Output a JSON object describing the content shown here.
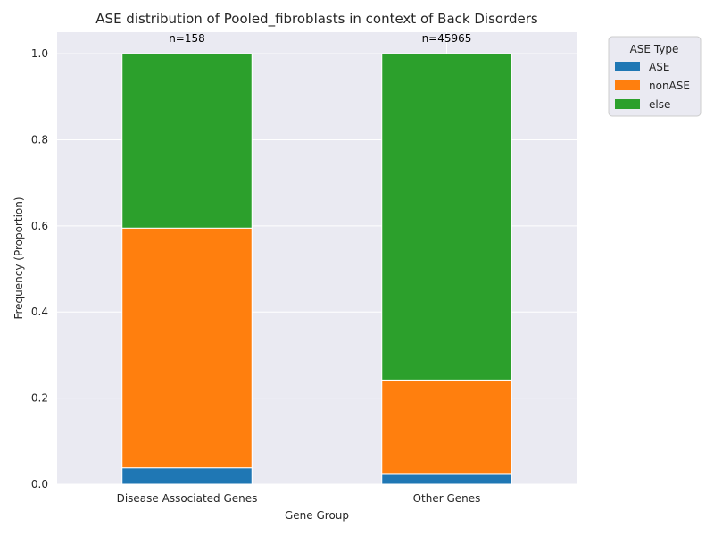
{
  "chart_data": {
    "type": "bar",
    "stacked": true,
    "title": "ASE distribution of Pooled_fibroblasts in context of Back Disorders",
    "xlabel": "Gene Group",
    "ylabel": "Frequency (Proportion)",
    "categories": [
      "Disease Associated Genes",
      "Other Genes"
    ],
    "counts": [
      "n=158",
      "n=45965"
    ],
    "series": [
      {
        "name": "ASE",
        "color": "#1f77b4",
        "values": [
          0.038,
          0.023
        ]
      },
      {
        "name": "nonASE",
        "color": "#ff7f0e",
        "values": [
          0.557,
          0.219
        ]
      },
      {
        "name": "else",
        "color": "#2ca02c",
        "values": [
          0.405,
          0.758
        ]
      }
    ],
    "ylim": [
      0,
      1.05
    ],
    "yticks": [
      "0.0",
      "0.2",
      "0.4",
      "0.6",
      "0.8",
      "1.0"
    ],
    "legend": {
      "title": "ASE Type",
      "placement": "outside-top-right"
    },
    "grid": true
  }
}
